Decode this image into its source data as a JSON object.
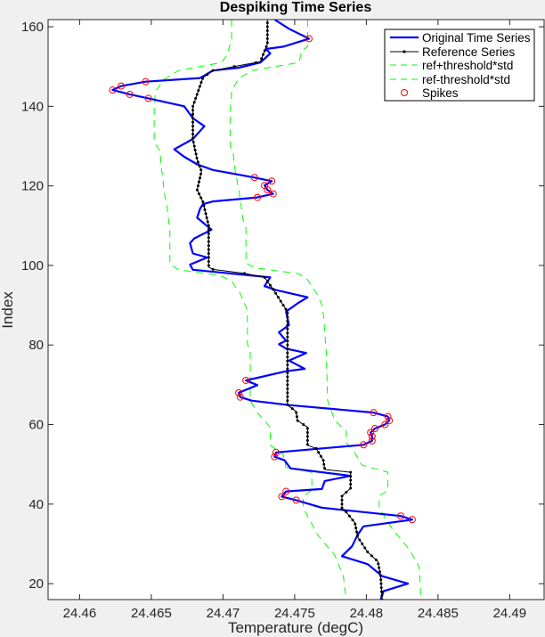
{
  "chart_data": {
    "type": "line",
    "title": "Despiking Time Series",
    "xlabel": "Temperature (degC)",
    "ylabel": "Index",
    "xlim": [
      24.4578,
      24.4924
    ],
    "ylim": [
      16,
      161.8
    ],
    "xticks": [
      24.46,
      24.465,
      24.47,
      24.475,
      24.48,
      24.485,
      24.49
    ],
    "xtick_labels": [
      "24.46",
      "24.465",
      "24.47",
      "24.475",
      "24.48",
      "24.485",
      "24.49"
    ],
    "yticks": [
      20,
      40,
      60,
      80,
      100,
      120,
      140,
      160
    ],
    "ytick_labels": [
      "20",
      "40",
      "60",
      "80",
      "100",
      "120",
      "140",
      "160"
    ],
    "grid": false,
    "legend_position": "top-right",
    "series": [
      {
        "name": "Original Time Series",
        "color": "#0000ff",
        "style": "solid",
        "points": [
          [
            24.4736,
            161.8
          ],
          [
            24.4746,
            159.5
          ],
          [
            24.476,
            157
          ],
          [
            24.4742,
            155
          ],
          [
            24.473,
            154.4
          ],
          [
            24.4733,
            153.3
          ],
          [
            24.4726,
            151
          ],
          [
            24.4711,
            149.7
          ],
          [
            24.4693,
            149
          ],
          [
            24.4684,
            147.1
          ],
          [
            24.4646,
            146.2
          ],
          [
            24.4629,
            145.1
          ],
          [
            24.4623,
            144.1
          ],
          [
            24.4635,
            143
          ],
          [
            24.4648,
            142
          ],
          [
            24.4673,
            140
          ],
          [
            24.4679,
            137
          ],
          [
            24.4687,
            135
          ],
          [
            24.4679,
            131.8
          ],
          [
            24.4666,
            129.2
          ],
          [
            24.4673,
            127.3
          ],
          [
            24.4682,
            125.4
          ],
          [
            24.4693,
            124
          ],
          [
            24.4722,
            122.1
          ],
          [
            24.4734,
            121.2
          ],
          [
            24.4729,
            120.1
          ],
          [
            24.4731,
            119
          ],
          [
            24.4735,
            118
          ],
          [
            24.4724,
            117.1
          ],
          [
            24.4693,
            116.1
          ],
          [
            24.4686,
            115.4
          ],
          [
            24.4684,
            114.2
          ],
          [
            24.4682,
            112
          ],
          [
            24.4687,
            110.5
          ],
          [
            24.4692,
            109
          ],
          [
            24.468,
            106.8
          ],
          [
            24.4677,
            105.6
          ],
          [
            24.4679,
            103
          ],
          [
            24.4689,
            102
          ],
          [
            24.4677,
            100.2
          ],
          [
            24.4679,
            98.9
          ],
          [
            24.4733,
            97
          ],
          [
            24.4729,
            94.8
          ],
          [
            24.4737,
            93.8
          ],
          [
            24.4759,
            92
          ],
          [
            24.4753,
            90.7
          ],
          [
            24.4744,
            88.4
          ],
          [
            24.4746,
            85
          ],
          [
            24.4739,
            83.2
          ],
          [
            24.4744,
            81.1
          ],
          [
            24.4739,
            80.2
          ],
          [
            24.4744,
            79.1
          ],
          [
            24.4758,
            78
          ],
          [
            24.4746,
            76.1
          ],
          [
            24.4757,
            74
          ],
          [
            24.4744,
            73.4
          ],
          [
            24.4716,
            71.1
          ],
          [
            24.4724,
            69.9
          ],
          [
            24.4711,
            68
          ],
          [
            24.4712,
            66.9
          ],
          [
            24.472,
            66
          ],
          [
            24.4746,
            64.9
          ],
          [
            24.4805,
            63
          ],
          [
            24.4815,
            62
          ],
          [
            24.4816,
            61
          ],
          [
            24.4813,
            60
          ],
          [
            24.4806,
            59
          ],
          [
            24.4803,
            58
          ],
          [
            24.4804,
            57
          ],
          [
            24.4804,
            55.9
          ],
          [
            24.4798,
            54.9
          ],
          [
            24.4737,
            53
          ],
          [
            24.4736,
            51.9
          ],
          [
            24.4743,
            51
          ],
          [
            24.4747,
            49
          ],
          [
            24.4789,
            47.1
          ],
          [
            24.4771,
            45.8
          ],
          [
            24.4769,
            43.8
          ],
          [
            24.4744,
            43.2
          ],
          [
            24.4741,
            41.9
          ],
          [
            24.4751,
            41
          ],
          [
            24.4769,
            39.1
          ],
          [
            24.4824,
            37
          ],
          [
            24.4832,
            36.1
          ],
          [
            24.4798,
            34.4
          ],
          [
            24.4794,
            32.3
          ],
          [
            24.479,
            29.4
          ],
          [
            24.4783,
            26.9
          ],
          [
            24.4801,
            24.9
          ],
          [
            24.4811,
            21.9
          ],
          [
            24.4829,
            20
          ],
          [
            24.4812,
            18.1
          ],
          [
            24.481,
            16
          ]
        ]
      },
      {
        "name": "Reference Series",
        "color": "#000000",
        "style": "solid-dotted",
        "points": [
          [
            24.4731,
            161.8
          ],
          [
            24.4731,
            155.7
          ],
          [
            24.4726,
            151.2
          ],
          [
            24.4693,
            149
          ],
          [
            24.4686,
            147.2
          ],
          [
            24.4679,
            140
          ],
          [
            24.4679,
            131.7
          ],
          [
            24.4682,
            126.6
          ],
          [
            24.4685,
            123.7
          ],
          [
            24.4682,
            119
          ],
          [
            24.4686,
            116
          ],
          [
            24.469,
            110
          ],
          [
            24.469,
            99.6
          ],
          [
            24.4693,
            99
          ],
          [
            24.4715,
            98
          ],
          [
            24.4729,
            97
          ],
          [
            24.4735,
            94
          ],
          [
            24.4744,
            88.9
          ],
          [
            24.4745,
            88.4
          ],
          [
            24.4745,
            64.9
          ],
          [
            24.4751,
            63.3
          ],
          [
            24.4752,
            61
          ],
          [
            24.4759,
            59.3
          ],
          [
            24.4759,
            54.8
          ],
          [
            24.4765,
            54
          ],
          [
            24.477,
            51
          ],
          [
            24.4771,
            48.7
          ],
          [
            24.4789,
            48
          ],
          [
            24.4789,
            44
          ],
          [
            24.4783,
            42
          ],
          [
            24.4783,
            38.6
          ],
          [
            24.4786,
            38
          ],
          [
            24.4792,
            35.3
          ],
          [
            24.4794,
            31.7
          ],
          [
            24.4801,
            27.9
          ],
          [
            24.4808,
            25.6
          ],
          [
            24.481,
            21.8
          ],
          [
            24.4811,
            16
          ]
        ]
      },
      {
        "name": "ref+threshold*std",
        "color": "#00ff00",
        "style": "dashed",
        "points": [
          [
            24.4759,
            161.8
          ],
          [
            24.4759,
            155
          ],
          [
            24.4755,
            154
          ],
          [
            24.4753,
            151
          ],
          [
            24.472,
            149
          ],
          [
            24.4711,
            147
          ],
          [
            24.4706,
            143.9
          ],
          [
            24.4705,
            138.3
          ],
          [
            24.4705,
            130
          ],
          [
            24.4707,
            128.7
          ],
          [
            24.4708,
            124.9
          ],
          [
            24.4711,
            119
          ],
          [
            24.4712,
            116.7
          ],
          [
            24.4714,
            111.5
          ],
          [
            24.4716,
            109.2
          ],
          [
            24.4716,
            100.6
          ],
          [
            24.4722,
            99.4
          ],
          [
            24.4753,
            97.9
          ],
          [
            24.4759,
            96.4
          ],
          [
            24.4766,
            92.6
          ],
          [
            24.4769,
            90
          ],
          [
            24.477,
            87.7
          ],
          [
            24.4772,
            78.7
          ],
          [
            24.4773,
            66
          ],
          [
            24.4778,
            61
          ],
          [
            24.4786,
            58.4
          ],
          [
            24.4786,
            55.4
          ],
          [
            24.479,
            54
          ],
          [
            24.4797,
            49.8
          ],
          [
            24.4815,
            48
          ],
          [
            24.4815,
            43.5
          ],
          [
            24.4809,
            42
          ],
          [
            24.4809,
            39
          ],
          [
            24.4818,
            33.8
          ],
          [
            24.483,
            28.6
          ],
          [
            24.4837,
            24.1
          ],
          [
            24.4838,
            16
          ]
        ]
      },
      {
        "name": "ref-threshold*std",
        "color": "#00ff00",
        "style": "dashed",
        "points": [
          [
            24.4706,
            161.8
          ],
          [
            24.4706,
            157
          ],
          [
            24.4703,
            153
          ],
          [
            24.4699,
            151
          ],
          [
            24.4669,
            149
          ],
          [
            24.4659,
            146.8
          ],
          [
            24.4653,
            143.8
          ],
          [
            24.4652,
            140
          ],
          [
            24.4652,
            131
          ],
          [
            24.4656,
            128.8
          ],
          [
            24.4657,
            124.4
          ],
          [
            24.4658,
            122.1
          ],
          [
            24.4659,
            118.4
          ],
          [
            24.4661,
            114.6
          ],
          [
            24.4663,
            108.6
          ],
          [
            24.4663,
            100.4
          ],
          [
            24.4669,
            98.9
          ],
          [
            24.4698,
            97.5
          ],
          [
            24.4706,
            96
          ],
          [
            24.4712,
            93
          ],
          [
            24.4716,
            89.6
          ],
          [
            24.4717,
            88.4
          ],
          [
            24.4717,
            80.2
          ],
          [
            24.4719,
            78.7
          ],
          [
            24.4719,
            66
          ],
          [
            24.4724,
            63
          ],
          [
            24.4733,
            59.3
          ],
          [
            24.4733,
            54.8
          ],
          [
            24.4742,
            52.5
          ],
          [
            24.4744,
            49.2
          ],
          [
            24.4762,
            48
          ],
          [
            24.4762,
            43.5
          ],
          [
            24.4756,
            42
          ],
          [
            24.4756,
            39
          ],
          [
            24.4766,
            32.3
          ],
          [
            24.4778,
            27.1
          ],
          [
            24.4784,
            21.8
          ],
          [
            24.4786,
            16
          ]
        ]
      }
    ],
    "spikes": {
      "name": "Spikes",
      "color": "#ff0000",
      "points": [
        [
          24.476,
          157
        ],
        [
          24.4646,
          146.2
        ],
        [
          24.4629,
          145.1
        ],
        [
          24.4623,
          144.1
        ],
        [
          24.4635,
          143
        ],
        [
          24.4648,
          142
        ],
        [
          24.4722,
          122.1
        ],
        [
          24.4734,
          121.2
        ],
        [
          24.4729,
          120.1
        ],
        [
          24.4731,
          119
        ],
        [
          24.4735,
          118
        ],
        [
          24.4724,
          117.1
        ],
        [
          24.4716,
          71.1
        ],
        [
          24.4711,
          68
        ],
        [
          24.4712,
          66.9
        ],
        [
          24.4805,
          63
        ],
        [
          24.4815,
          62
        ],
        [
          24.4816,
          61
        ],
        [
          24.4813,
          60
        ],
        [
          24.4806,
          59
        ],
        [
          24.4803,
          58
        ],
        [
          24.4804,
          57
        ],
        [
          24.4804,
          55.9
        ],
        [
          24.4798,
          54.9
        ],
        [
          24.4737,
          53
        ],
        [
          24.4736,
          51.9
        ],
        [
          24.4744,
          43.2
        ],
        [
          24.4741,
          41.9
        ],
        [
          24.4751,
          41
        ],
        [
          24.4824,
          37
        ],
        [
          24.4832,
          36.1
        ]
      ]
    },
    "legend": [
      "Original Time Series",
      "Reference Series",
      "ref+threshold*std",
      "ref-threshold*std",
      "Spikes"
    ]
  }
}
